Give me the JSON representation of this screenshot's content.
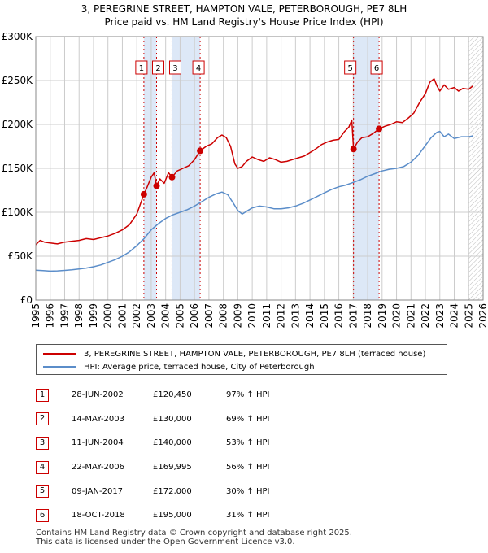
{
  "title_line1": "3, PEREGRINE STREET, HAMPTON VALE, PETERBOROUGH, PE7 8LH",
  "title_line2": "Price paid vs. HM Land Registry's House Price Index (HPI)",
  "colors": {
    "red": "#cc0000",
    "blue": "#5b8dc9",
    "band": "#dde8f7",
    "grid": "#cccccc",
    "marker_line": "#cc0000"
  },
  "chart_data": {
    "type": "line",
    "xlim": [
      1995,
      2026
    ],
    "ylim": [
      0,
      300000
    ],
    "y_ticks": [
      {
        "value": 0,
        "label": "£0"
      },
      {
        "value": 50000,
        "label": "£50K"
      },
      {
        "value": 100000,
        "label": "£100K"
      },
      {
        "value": 150000,
        "label": "£150K"
      },
      {
        "value": 200000,
        "label": "£200K"
      },
      {
        "value": 250000,
        "label": "£250K"
      },
      {
        "value": 300000,
        "label": "£300K"
      }
    ],
    "x_ticks": [
      "1995",
      "1996",
      "1997",
      "1998",
      "1999",
      "2000",
      "2001",
      "2002",
      "2003",
      "2004",
      "2005",
      "2006",
      "2007",
      "2008",
      "2009",
      "2010",
      "2011",
      "2012",
      "2013",
      "2014",
      "2015",
      "2016",
      "2017",
      "2018",
      "2019",
      "2020",
      "2021",
      "2022",
      "2023",
      "2024",
      "2025",
      "2026"
    ],
    "shaded_ranges": [
      [
        2002.49,
        2003.37
      ],
      [
        2004.44,
        2006.39
      ],
      [
        2017.02,
        2018.79
      ]
    ],
    "hatched_from": 2025.0,
    "series": [
      {
        "name": "3, PEREGRINE STREET, HAMPTON VALE, PETERBOROUGH, PE7 8LH (terraced house)",
        "color": "#cc0000",
        "x": [
          1995.0,
          1995.3,
          1995.6,
          1996.0,
          1996.5,
          1997.0,
          1997.5,
          1998.0,
          1998.5,
          1999.0,
          1999.5,
          2000.0,
          2000.5,
          2001.0,
          2001.5,
          2002.0,
          2002.49,
          2002.7,
          2003.0,
          2003.2,
          2003.37,
          2003.6,
          2003.9,
          2004.2,
          2004.44,
          2004.8,
          2005.2,
          2005.6,
          2006.0,
          2006.39,
          2006.8,
          2007.2,
          2007.6,
          2007.9,
          2008.2,
          2008.5,
          2008.8,
          2009.0,
          2009.3,
          2009.6,
          2010.0,
          2010.4,
          2010.8,
          2011.2,
          2011.6,
          2012.0,
          2012.4,
          2012.8,
          2013.2,
          2013.6,
          2014.0,
          2014.4,
          2014.8,
          2015.2,
          2015.6,
          2016.0,
          2016.4,
          2016.7,
          2016.9,
          2017.02,
          2017.3,
          2017.6,
          2018.0,
          2018.4,
          2018.79,
          2019.2,
          2019.6,
          2020.0,
          2020.4,
          2020.8,
          2021.2,
          2021.6,
          2022.0,
          2022.3,
          2022.6,
          2022.8,
          2023.0,
          2023.3,
          2023.6,
          2024.0,
          2024.3,
          2024.6,
          2025.0,
          2025.3
        ],
        "y": [
          63000,
          68000,
          66000,
          65000,
          64000,
          66000,
          67000,
          68000,
          70000,
          69000,
          71000,
          73000,
          76000,
          80000,
          86000,
          98000,
          120450,
          128000,
          140000,
          145000,
          130000,
          138000,
          133000,
          145000,
          140000,
          147000,
          150000,
          153000,
          160000,
          169995,
          175000,
          178000,
          185000,
          188000,
          185000,
          175000,
          155000,
          150000,
          152000,
          158000,
          163000,
          160000,
          158000,
          162000,
          160000,
          157000,
          158000,
          160000,
          162000,
          164000,
          168000,
          172000,
          177000,
          180000,
          182000,
          183000,
          192000,
          197000,
          205000,
          172000,
          180000,
          185000,
          186000,
          190000,
          195000,
          198000,
          200000,
          203000,
          202000,
          207000,
          213000,
          225000,
          235000,
          248000,
          252000,
          244000,
          238000,
          245000,
          240000,
          242000,
          238000,
          241000,
          240000,
          244000
        ]
      },
      {
        "name": "HPI: Average price, terraced house, City of Peterborough",
        "color": "#5b8dc9",
        "x": [
          1995.0,
          1995.5,
          1996.0,
          1996.5,
          1997.0,
          1997.5,
          1998.0,
          1998.5,
          1999.0,
          1999.5,
          2000.0,
          2000.5,
          2001.0,
          2001.5,
          2002.0,
          2002.5,
          2003.0,
          2003.5,
          2004.0,
          2004.5,
          2005.0,
          2005.5,
          2006.0,
          2006.5,
          2007.0,
          2007.5,
          2007.9,
          2008.3,
          2008.7,
          2009.0,
          2009.3,
          2009.7,
          2010.0,
          2010.5,
          2011.0,
          2011.5,
          2012.0,
          2012.5,
          2013.0,
          2013.5,
          2014.0,
          2014.5,
          2015.0,
          2015.5,
          2016.0,
          2016.5,
          2017.0,
          2017.5,
          2018.0,
          2018.5,
          2019.0,
          2019.5,
          2020.0,
          2020.5,
          2021.0,
          2021.5,
          2022.0,
          2022.4,
          2022.8,
          2023.0,
          2023.3,
          2023.6,
          2024.0,
          2024.5,
          2025.0,
          2025.3
        ],
        "y": [
          34000,
          33500,
          33000,
          33200,
          33800,
          34500,
          35500,
          36500,
          38000,
          40000,
          43000,
          46000,
          50000,
          55000,
          62000,
          70000,
          80000,
          87000,
          93000,
          97000,
          100000,
          103000,
          107000,
          112000,
          117000,
          121000,
          123000,
          120000,
          110000,
          102000,
          98000,
          102000,
          105000,
          107000,
          106000,
          104000,
          104000,
          105000,
          107000,
          110000,
          114000,
          118000,
          122000,
          126000,
          129000,
          131000,
          134000,
          137000,
          141000,
          144000,
          147000,
          149000,
          150000,
          152000,
          157000,
          165000,
          176000,
          185000,
          191000,
          192000,
          186000,
          189000,
          184000,
          186000,
          186000,
          187000
        ]
      }
    ],
    "sales": [
      {
        "id": "1",
        "x": 2002.49,
        "y": 120450
      },
      {
        "id": "2",
        "x": 2003.37,
        "y": 130000
      },
      {
        "id": "3",
        "x": 2004.44,
        "y": 140000
      },
      {
        "id": "4",
        "x": 2006.39,
        "y": 169995
      },
      {
        "id": "5",
        "x": 2017.02,
        "y": 172000
      },
      {
        "id": "6",
        "x": 2018.79,
        "y": 195000
      }
    ]
  },
  "legend": {
    "red_label": "3, PEREGRINE STREET, HAMPTON VALE, PETERBOROUGH, PE7 8LH (terraced house)",
    "blue_label": "HPI: Average price, terraced house, City of Peterborough"
  },
  "table": [
    {
      "num": "1",
      "date": "28-JUN-2002",
      "price": "£120,450",
      "hpi": "97% ↑ HPI"
    },
    {
      "num": "2",
      "date": "14-MAY-2003",
      "price": "£130,000",
      "hpi": "69% ↑ HPI"
    },
    {
      "num": "3",
      "date": "11-JUN-2004",
      "price": "£140,000",
      "hpi": "53% ↑ HPI"
    },
    {
      "num": "4",
      "date": "22-MAY-2006",
      "price": "£169,995",
      "hpi": "56% ↑ HPI"
    },
    {
      "num": "5",
      "date": "09-JAN-2017",
      "price": "£172,000",
      "hpi": "30% ↑ HPI"
    },
    {
      "num": "6",
      "date": "18-OCT-2018",
      "price": "£195,000",
      "hpi": "31% ↑ HPI"
    }
  ],
  "footer_line1": "Contains HM Land Registry data © Crown copyright and database right 2025.",
  "footer_line2": "This data is licensed under the Open Government Licence v3.0."
}
